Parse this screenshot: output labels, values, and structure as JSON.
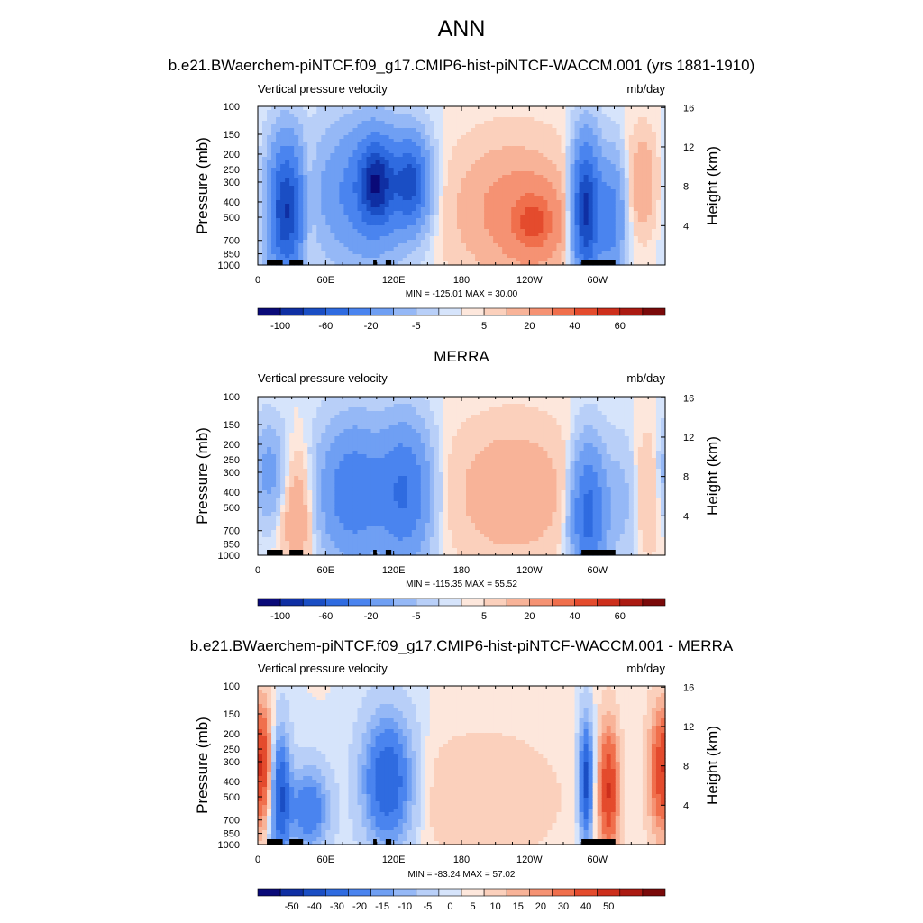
{
  "page": {
    "title": "ANN"
  },
  "colorbars": {
    "abs": {
      "colors": [
        "#0a0a78",
        "#0f2fa3",
        "#1a4ec4",
        "#2f6be0",
        "#4a84ef",
        "#6f9ff3",
        "#95b8f6",
        "#b8cff8",
        "#d6e4fb",
        "#fde7dc",
        "#fbd0bc",
        "#f8b398",
        "#f59273",
        "#f06f4c",
        "#e44b2d",
        "#cd2f1c",
        "#ab1a12",
        "#7a0a0a"
      ],
      "labels": [
        "-100",
        "-60",
        "-20",
        "-5",
        "5",
        "20",
        "40",
        "60"
      ]
    },
    "diff": {
      "colors": [
        "#0a0a78",
        "#0f2fa3",
        "#1a4ec4",
        "#2f6be0",
        "#4a84ef",
        "#6f9ff3",
        "#95b8f6",
        "#b8cff8",
        "#d6e4fb",
        "#fde7dc",
        "#fbd0bc",
        "#f8b398",
        "#f59273",
        "#f06f4c",
        "#e44b2d",
        "#cd2f1c",
        "#ab1a12",
        "#7a0a0a"
      ],
      "labels": [
        "-50",
        "-40",
        "-30",
        "-20",
        "-15",
        "-10",
        "-5",
        "0",
        "5",
        "10",
        "15",
        "20",
        "30",
        "40",
        "50"
      ]
    }
  },
  "axes": {
    "x_ticks": [
      "0",
      "60E",
      "120E",
      "180",
      "120W",
      "60W"
    ],
    "y_ticks": [
      "100",
      "150",
      "200",
      "250",
      "300",
      "400",
      "500",
      "700",
      "850",
      "1000"
    ],
    "y_right_ticks": [
      "16",
      "12",
      "8",
      "4"
    ],
    "ylabel_left": "Pressure (mb)",
    "ylabel_right": "Height (km)"
  },
  "panels": [
    {
      "title": "b.e21.BWaerchem-piNTCF.f09_g17.CMIP6-hist-piNTCF-WACCM.001 (yrs 1881-1910)",
      "variable": "Vertical pressure velocity",
      "units": "mb/day",
      "stats": "MIN = -125.01  MAX =  30.00",
      "colorbar": "abs"
    },
    {
      "title": "MERRA",
      "variable": "Vertical pressure velocity",
      "units": "mb/day",
      "stats": "MIN = -115.35  MAX =  55.52",
      "colorbar": "abs"
    },
    {
      "title": "b.e21.BWaerchem-piNTCF.f09_g17.CMIP6-hist-piNTCF-WACCM.001 - MERRA",
      "variable": "Vertical pressure velocity",
      "units": "mb/day",
      "stats": "MIN = -83.24  MAX =  57.02",
      "colorbar": "diff"
    }
  ],
  "chart_data": [
    {
      "type": "heatmap",
      "title": "b.e21.BWaerchem-piNTCF.f09_g17.CMIP6-hist-piNTCF-WACCM.001 (yrs 1881-1910)",
      "xlabel": "",
      "ylabel": "Pressure (mb)",
      "ylabel_right": "Height (km)",
      "x_ticks": [
        "0",
        "60E",
        "120E",
        "180",
        "120W",
        "60W"
      ],
      "y_ticks": [
        100,
        150,
        200,
        250,
        300,
        400,
        500,
        700,
        850,
        1000
      ],
      "ylim": [
        1000,
        100
      ],
      "y_scale": "log",
      "min": -125.01,
      "max": 30.0,
      "features": [
        {
          "lon": 25,
          "p": 450,
          "value": -90,
          "wlon": 10,
          "wlog": 0.55
        },
        {
          "lon": 45,
          "p": 400,
          "value": 10,
          "wlon": 5,
          "wlog": 0.5
        },
        {
          "lon": 95,
          "p": 350,
          "value": -40,
          "wlon": 28,
          "wlog": 0.55
        },
        {
          "lon": 105,
          "p": 300,
          "value": -80,
          "wlon": 10,
          "wlog": 0.35
        },
        {
          "lon": 135,
          "p": 300,
          "value": -70,
          "wlon": 10,
          "wlog": 0.35
        },
        {
          "lon": 225,
          "p": 450,
          "value": 20,
          "wlon": 35,
          "wlog": 0.55
        },
        {
          "lon": 245,
          "p": 550,
          "value": 30,
          "wlon": 15,
          "wlog": 0.3
        },
        {
          "lon": 290,
          "p": 450,
          "value": -100,
          "wlon": 8,
          "wlog": 0.55
        },
        {
          "lon": 312,
          "p": 500,
          "value": -40,
          "wlon": 8,
          "wlog": 0.5
        },
        {
          "lon": 340,
          "p": 300,
          "value": 15,
          "wlon": 8,
          "wlog": 0.4
        }
      ]
    },
    {
      "type": "heatmap",
      "title": "MERRA",
      "xlabel": "",
      "ylabel": "Pressure (mb)",
      "ylabel_right": "Height (km)",
      "x_ticks": [
        "0",
        "60E",
        "120E",
        "180",
        "120W",
        "60W"
      ],
      "y_ticks": [
        100,
        150,
        200,
        250,
        300,
        400,
        500,
        700,
        850,
        1000
      ],
      "ylim": [
        1000,
        100
      ],
      "y_scale": "log",
      "min": -115.35,
      "max": 55.52,
      "features": [
        {
          "lon": 10,
          "p": 300,
          "value": -20,
          "wlon": 10,
          "wlog": 0.4
        },
        {
          "lon": 35,
          "p": 550,
          "value": 15,
          "wlon": 10,
          "wlog": 0.5
        },
        {
          "lon": 85,
          "p": 400,
          "value": -45,
          "wlon": 20,
          "wlog": 0.55
        },
        {
          "lon": 130,
          "p": 400,
          "value": -50,
          "wlon": 15,
          "wlog": 0.55
        },
        {
          "lon": 225,
          "p": 400,
          "value": 15,
          "wlon": 35,
          "wlog": 0.55
        },
        {
          "lon": 292,
          "p": 550,
          "value": -60,
          "wlon": 10,
          "wlog": 0.55
        },
        {
          "lon": 320,
          "p": 450,
          "value": -10,
          "wlon": 10,
          "wlog": 0.5
        },
        {
          "lon": 345,
          "p": 400,
          "value": 8,
          "wlon": 8,
          "wlog": 0.5
        }
      ]
    },
    {
      "type": "heatmap",
      "title": "b.e21.BWaerchem-piNTCF.f09_g17.CMIP6-hist-piNTCF-WACCM.001 - MERRA",
      "xlabel": "",
      "ylabel": "Pressure (mb)",
      "ylabel_right": "Height (km)",
      "x_ticks": [
        "0",
        "60E",
        "120E",
        "180",
        "120W",
        "60W"
      ],
      "y_ticks": [
        100,
        150,
        200,
        250,
        300,
        400,
        500,
        700,
        850,
        1000
      ],
      "ylim": [
        1000,
        100
      ],
      "y_scale": "log",
      "min": -83.24,
      "max": 57.02,
      "features": [
        {
          "lon": 5,
          "p": 300,
          "value": 25,
          "wlon": 6,
          "wlog": 0.5
        },
        {
          "lon": 20,
          "p": 500,
          "value": -35,
          "wlon": 6,
          "wlog": 0.55
        },
        {
          "lon": 45,
          "p": 600,
          "value": -25,
          "wlon": 12,
          "wlog": 0.35
        },
        {
          "lon": 115,
          "p": 400,
          "value": -35,
          "wlon": 15,
          "wlog": 0.55
        },
        {
          "lon": 200,
          "p": 500,
          "value": 5,
          "wlon": 50,
          "wlog": 0.6
        },
        {
          "lon": 290,
          "p": 400,
          "value": -40,
          "wlon": 4,
          "wlog": 0.5
        },
        {
          "lon": 310,
          "p": 450,
          "value": 35,
          "wlon": 6,
          "wlog": 0.55
        },
        {
          "lon": 355,
          "p": 350,
          "value": 25,
          "wlon": 7,
          "wlog": 0.55
        }
      ]
    }
  ]
}
